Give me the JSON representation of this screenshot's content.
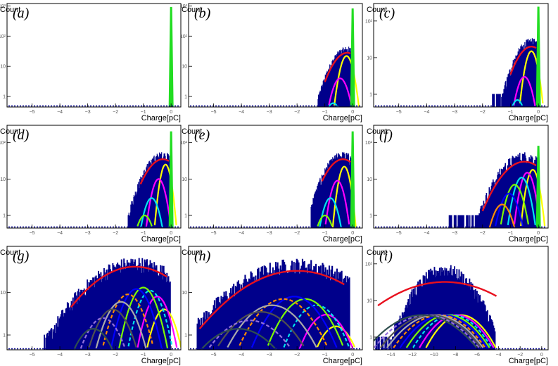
{
  "colors": {
    "hist": "#00008b",
    "fit": "#e8101e",
    "pedestal": "#22dd22",
    "components": [
      "#ffff00",
      "#ff00ff",
      "#00e5ee",
      "#7cfc00",
      "#0000ff",
      "#ff8c00",
      "#a9a9a9",
      "#505050",
      "#9370db",
      "#2f4f4f",
      "#c0c0c0",
      "#4b0082",
      "#ff69b4",
      "#00bfff",
      "#8b4513"
    ]
  },
  "chart_data": [
    {
      "type": "line",
      "label": "(a)",
      "xlabel": "Charge[pC]",
      "ylabel": "Count",
      "log_y": true,
      "xlim": [
        -5.9,
        0.35
      ],
      "ylim": [
        0.45,
        1200
      ],
      "xticks": [
        -5,
        -4,
        -3,
        -2,
        -1,
        0
      ],
      "yticks": [
        {
          "v": 1,
          "t": "1"
        },
        {
          "v": 10,
          "t": "10"
        },
        {
          "v": 100,
          "t": "10²"
        },
        {
          "v": 1000,
          "t": "10³"
        }
      ],
      "pedestal": {
        "center": 0.0,
        "peak": 900,
        "width": 0.015
      },
      "hist": null,
      "fit": null,
      "components": []
    },
    {
      "type": "line",
      "label": "(b)",
      "xlabel": "Charge[pC]",
      "ylabel": "Count",
      "log_y": true,
      "xlim": [
        -5.9,
        0.35
      ],
      "ylim": [
        0.45,
        1200
      ],
      "xticks": [
        -5,
        -4,
        -3,
        -2,
        -1,
        0
      ],
      "yticks": [
        {
          "v": 1,
          "t": "1"
        },
        {
          "v": 10,
          "t": "10"
        },
        {
          "v": 100,
          "t": "10²"
        },
        {
          "v": 1000,
          "t": "10³"
        }
      ],
      "pedestal": {
        "center": 0.0,
        "peak": 800,
        "width": 0.015
      },
      "hist": {
        "mu": -0.2,
        "sigma": 0.38,
        "peak": 32,
        "xmin": -1.25,
        "xmax": -0.02
      },
      "fit": {
        "mu": -0.2,
        "sigma": 0.38,
        "peak": 28,
        "xmin": -1.0,
        "xmax": -0.08
      },
      "components": [
        {
          "mu": -0.22,
          "sigma": 0.16,
          "peak": 22
        },
        {
          "mu": -0.45,
          "sigma": 0.2,
          "peak": 4
        },
        {
          "mu": -0.7,
          "sigma": 0.22,
          "peak": 0.6
        }
      ]
    },
    {
      "type": "line",
      "label": "(c)",
      "xlabel": "Charge[pC]",
      "ylabel": "Count",
      "log_y": true,
      "xlim": [
        -5.9,
        0.35
      ],
      "ylim": [
        0.45,
        300
      ],
      "xticks": [
        -5,
        -4,
        -3,
        -2,
        -1,
        0
      ],
      "yticks": [
        {
          "v": 1,
          "t": "1"
        },
        {
          "v": 10,
          "t": "10"
        },
        {
          "v": 100,
          "t": "10²"
        }
      ],
      "pedestal": {
        "center": 0.0,
        "peak": 240,
        "width": 0.015
      },
      "hist": {
        "mu": -0.25,
        "sigma": 0.4,
        "peak": 24,
        "xmin": -1.65,
        "xmax": -0.02
      },
      "fit": {
        "mu": -0.25,
        "sigma": 0.4,
        "peak": 20,
        "xmin": -1.0,
        "xmax": -0.08
      },
      "components": [
        {
          "mu": -0.25,
          "sigma": 0.16,
          "peak": 15
        },
        {
          "mu": -0.5,
          "sigma": 0.2,
          "peak": 3
        },
        {
          "mu": -0.75,
          "sigma": 0.2,
          "peak": 0.7
        }
      ]
    },
    {
      "type": "line",
      "label": "(d)",
      "xlabel": "Charge[pC]",
      "ylabel": "Count",
      "log_y": true,
      "xlim": [
        -5.9,
        0.35
      ],
      "ylim": [
        0.45,
        300
      ],
      "xticks": [
        -5,
        -4,
        -3,
        -2,
        -1,
        0
      ],
      "yticks": [
        {
          "v": 1,
          "t": "1"
        },
        {
          "v": 10,
          "t": "10"
        },
        {
          "v": 100,
          "t": "10²"
        }
      ],
      "pedestal": {
        "center": 0.0,
        "peak": 200,
        "width": 0.015
      },
      "hist": {
        "mu": -0.3,
        "sigma": 0.45,
        "peak": 40,
        "xmin": -1.55,
        "xmax": -0.02
      },
      "fit": {
        "mu": -0.3,
        "sigma": 0.45,
        "peak": 35,
        "xmin": -1.1,
        "xmax": -0.08
      },
      "components": [
        {
          "mu": -0.2,
          "sigma": 0.14,
          "peak": 25
        },
        {
          "mu": -0.45,
          "sigma": 0.18,
          "peak": 10
        },
        {
          "mu": -0.7,
          "sigma": 0.2,
          "peak": 3
        },
        {
          "mu": -0.95,
          "sigma": 0.22,
          "peak": 1
        }
      ]
    },
    {
      "type": "line",
      "label": "(e)",
      "xlabel": "Charge[pC]",
      "ylabel": "Count",
      "log_y": true,
      "xlim": [
        -5.9,
        0.35
      ],
      "ylim": [
        0.45,
        300
      ],
      "xticks": [
        -5,
        -4,
        -3,
        -2,
        -1,
        0
      ],
      "yticks": [
        {
          "v": 1,
          "t": "1"
        },
        {
          "v": 10,
          "t": "10"
        },
        {
          "v": 100,
          "t": "10²"
        }
      ],
      "pedestal": {
        "center": 0.0,
        "peak": 200,
        "width": 0.015
      },
      "hist": {
        "mu": -0.35,
        "sigma": 0.45,
        "peak": 40,
        "xmin": -1.5,
        "xmax": -0.02
      },
      "fit": {
        "mu": -0.35,
        "sigma": 0.45,
        "peak": 35,
        "xmin": -1.1,
        "xmax": -0.08
      },
      "components": [
        {
          "mu": -0.3,
          "sigma": 0.15,
          "peak": 22
        },
        {
          "mu": -0.55,
          "sigma": 0.18,
          "peak": 9
        },
        {
          "mu": -0.8,
          "sigma": 0.2,
          "peak": 3
        },
        {
          "mu": -1.0,
          "sigma": 0.22,
          "peak": 1
        }
      ]
    },
    {
      "type": "line",
      "label": "(f)",
      "xlabel": "Charge[pC]",
      "ylabel": "Count",
      "log_y": true,
      "xlim": [
        -5.9,
        0.35
      ],
      "ylim": [
        0.45,
        300
      ],
      "xticks": [
        -5,
        -4,
        -3,
        -2,
        -1,
        0
      ],
      "yticks": [
        {
          "v": 1,
          "t": "1"
        },
        {
          "v": 10,
          "t": "10"
        },
        {
          "v": 100,
          "t": "10²"
        }
      ],
      "pedestal": {
        "center": 0.0,
        "peak": 80,
        "width": 0.015
      },
      "hist": {
        "mu": -0.5,
        "sigma": 0.6,
        "peak": 40,
        "xmin": -3.2,
        "xmax": -0.02
      },
      "fit": {
        "mu": -0.5,
        "sigma": 0.6,
        "peak": 30,
        "xmin": -2.0,
        "xmax": -0.08
      },
      "components": [
        {
          "mu": -0.2,
          "sigma": 0.16,
          "peak": 18
        },
        {
          "mu": -0.4,
          "sigma": 0.18,
          "peak": 15
        },
        {
          "mu": -0.6,
          "sigma": 0.2,
          "peak": 11
        },
        {
          "mu": -0.85,
          "sigma": 0.22,
          "peak": 7
        },
        {
          "mu": -1.05,
          "sigma": 0.24,
          "peak": 4
        },
        {
          "mu": -1.3,
          "sigma": 0.26,
          "peak": 2
        }
      ]
    },
    {
      "type": "line",
      "label": "(g)",
      "xlabel": "Charge[pC]",
      "ylabel": "Count",
      "log_y": true,
      "xlim": [
        -5.9,
        0.35
      ],
      "ylim": [
        0.45,
        120
      ],
      "xticks": [
        -5,
        -4,
        -3,
        -2,
        -1,
        0
      ],
      "yticks": [
        {
          "v": 1,
          "t": "1"
        },
        {
          "v": 10,
          "t": "10"
        }
      ],
      "pedestal": null,
      "hist": {
        "mu": -1.3,
        "sigma": 1.1,
        "peak": 48,
        "xmin": -4.6,
        "xmax": -0.02
      },
      "fit": {
        "mu": -1.3,
        "sigma": 1.1,
        "peak": 40,
        "xmin": -3.6,
        "xmax": -0.15
      },
      "components": [
        {
          "mu": -0.25,
          "sigma": 0.3,
          "peak": 4
        },
        {
          "mu": -0.5,
          "sigma": 0.3,
          "peak": 8
        },
        {
          "mu": -0.75,
          "sigma": 0.32,
          "peak": 11
        },
        {
          "mu": -1.0,
          "sigma": 0.34,
          "peak": 13
        },
        {
          "mu": -1.25,
          "sigma": 0.36,
          "peak": 12
        },
        {
          "mu": -1.55,
          "sigma": 0.38,
          "peak": 9
        },
        {
          "mu": -1.8,
          "sigma": 0.4,
          "peak": 6
        },
        {
          "mu": -2.1,
          "sigma": 0.42,
          "peak": 4
        },
        {
          "mu": -2.45,
          "sigma": 0.44,
          "peak": 2.5
        },
        {
          "mu": -2.8,
          "sigma": 0.46,
          "peak": 1.4
        }
      ]
    },
    {
      "type": "line",
      "label": "(h)",
      "xlabel": "Charge[pC]",
      "ylabel": "Count",
      "log_y": true,
      "xlim": [
        -5.9,
        0.35
      ],
      "ylim": [
        0.45,
        120
      ],
      "xticks": [
        -5,
        -4,
        -3,
        -2,
        -1,
        0
      ],
      "yticks": [
        {
          "v": 1,
          "t": "1"
        },
        {
          "v": 10,
          "t": "10"
        }
      ],
      "pedestal": null,
      "hist": {
        "mu": -2.0,
        "sigma": 1.4,
        "peak": 45,
        "xmin": -5.6,
        "xmax": -0.1
      },
      "fit": {
        "mu": -2.0,
        "sigma": 1.4,
        "peak": 32,
        "xmin": -5.5,
        "xmax": -0.3
      },
      "components": [
        {
          "mu": -0.6,
          "sigma": 0.45,
          "peak": 1.6
        },
        {
          "mu": -0.95,
          "sigma": 0.5,
          "peak": 3
        },
        {
          "mu": -1.3,
          "sigma": 0.55,
          "peak": 5
        },
        {
          "mu": -1.7,
          "sigma": 0.6,
          "peak": 7
        },
        {
          "mu": -2.1,
          "sigma": 0.65,
          "peak": 8
        },
        {
          "mu": -2.5,
          "sigma": 0.7,
          "peak": 7
        },
        {
          "mu": -2.9,
          "sigma": 0.75,
          "peak": 5
        },
        {
          "mu": -3.3,
          "sigma": 0.8,
          "peak": 3.5
        },
        {
          "mu": -3.7,
          "sigma": 0.85,
          "peak": 2.2
        },
        {
          "mu": -4.1,
          "sigma": 0.9,
          "peak": 1.4
        }
      ]
    },
    {
      "type": "line",
      "label": "(i)",
      "xlabel": "Charge[pC]",
      "ylabel": "Count",
      "log_y": true,
      "xlim": [
        -15.6,
        0.6
      ],
      "ylim": [
        0.45,
        300
      ],
      "xticks": [
        -14,
        -12,
        -10,
        -8,
        -6,
        -4,
        -2,
        0
      ],
      "yticks": [
        {
          "v": 1,
          "t": "1"
        },
        {
          "v": 10,
          "t": "10"
        },
        {
          "v": 100,
          "t": "10²"
        }
      ],
      "pedestal": null,
      "hist": {
        "mu": -9.0,
        "sigma": 1.7,
        "peak": 70,
        "xmin": -15.4,
        "xmax": -4.3
      },
      "fit": {
        "mu": -9.0,
        "sigma": 3.6,
        "peak": 32,
        "xmin": -15.2,
        "xmax": -4.2
      },
      "components": [
        {
          "mu": -7.5,
          "sigma": 1.6,
          "peak": 4
        },
        {
          "mu": -7.9,
          "sigma": 1.7,
          "peak": 4
        },
        {
          "mu": -8.3,
          "sigma": 1.8,
          "peak": 4
        },
        {
          "mu": -8.7,
          "sigma": 1.9,
          "peak": 4
        },
        {
          "mu": -9.1,
          "sigma": 2.0,
          "peak": 4
        },
        {
          "mu": -9.5,
          "sigma": 2.1,
          "peak": 4
        },
        {
          "mu": -9.9,
          "sigma": 2.2,
          "peak": 4
        },
        {
          "mu": -10.3,
          "sigma": 2.3,
          "peak": 4
        },
        {
          "mu": -10.7,
          "sigma": 2.4,
          "peak": 4
        },
        {
          "mu": -11.1,
          "sigma": 2.5,
          "peak": 4
        }
      ]
    }
  ]
}
